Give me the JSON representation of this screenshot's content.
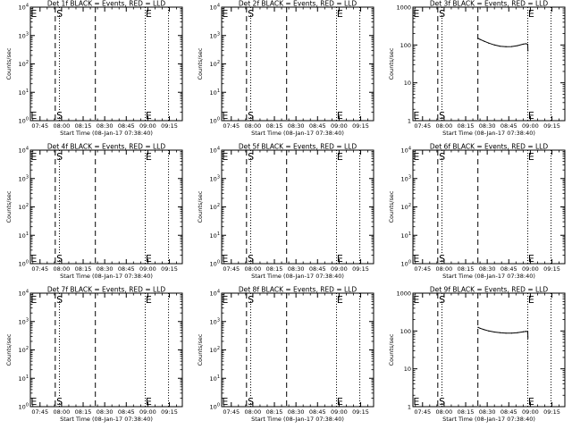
{
  "colors": {
    "events": "#000000",
    "lld": "#ff0000",
    "axes": "#000000",
    "background": "#ffffff"
  },
  "chart_data": [
    {
      "id": "det1f",
      "type": "line",
      "title": "Det 1f BLACK = Events, RED = LLD",
      "ylabel": "Counts/sec",
      "xlabel": "Start Time (08-Jan-17 07:38:40)",
      "yscale": "log",
      "ylim_exp": [
        0,
        4
      ],
      "ytick_style": "exp",
      "ytick_labels": [
        "10^4",
        "10^3",
        "10^2",
        "10^1",
        "10^0"
      ],
      "xtick_labels": [
        "07:45",
        "08:00",
        "08:15",
        "08:30",
        "08:45",
        "09:00",
        "09:15"
      ],
      "xlim_min": [
        -6.7,
        99
      ],
      "xtick_min": [
        0,
        15,
        30,
        45,
        60,
        75,
        90
      ],
      "dashed_lines_min": [
        10.6,
        38.5
      ],
      "dotted_lines_min": [
        13.5,
        73.2,
        89.4
      ],
      "markers": [
        {
          "label": "E",
          "x_min": -6.5
        },
        {
          "label": "S",
          "x_min": 11.4
        },
        {
          "label": "E",
          "x_min": 73.4
        }
      ],
      "series": []
    },
    {
      "id": "det2f",
      "type": "line",
      "title": "Det 2f BLACK = Events, RED = LLD",
      "ylabel": "Counts/sec",
      "xlabel": "Start Time (08-Jan-17 07:38:40)",
      "yscale": "log",
      "ylim_exp": [
        0,
        4
      ],
      "ytick_style": "exp",
      "ytick_labels": [
        "10^4",
        "10^3",
        "10^2",
        "10^1",
        "10^0"
      ],
      "xtick_labels": [
        "07:45",
        "08:00",
        "08:15",
        "08:30",
        "08:45",
        "09:00",
        "09:15"
      ],
      "xlim_min": [
        -6.7,
        99
      ],
      "xtick_min": [
        0,
        15,
        30,
        45,
        60,
        75,
        90
      ],
      "dashed_lines_min": [
        10.6,
        38.5
      ],
      "dotted_lines_min": [
        13.5,
        73.2,
        89.4
      ],
      "markers": [
        {
          "label": "E",
          "x_min": -6.5
        },
        {
          "label": "S",
          "x_min": 11.4
        },
        {
          "label": "E",
          "x_min": 73.4
        }
      ],
      "series": []
    },
    {
      "id": "det3f",
      "type": "line",
      "title": "Det 3f BLACK = Events, RED = LLD",
      "ylabel": "Counts/sec",
      "xlabel": "Start Time (08-Jan-17 07:38:40)",
      "yscale": "log",
      "ylim_exp": [
        0,
        3
      ],
      "ytick_style": "plain",
      "ytick_labels": [
        "1000",
        "100",
        "10",
        "1"
      ],
      "xtick_labels": [
        "07:45",
        "08:00",
        "08:15",
        "08:30",
        "08:45",
        "09:00",
        "09:15"
      ],
      "xlim_min": [
        -6.7,
        99
      ],
      "xtick_min": [
        0,
        15,
        30,
        45,
        60,
        75,
        90
      ],
      "dashed_lines_min": [
        10.6,
        38.5
      ],
      "dotted_lines_min": [
        13.5,
        73.2,
        89.4
      ],
      "markers": [
        {
          "label": "E",
          "x_min": -6.5
        },
        {
          "label": "S",
          "x_min": 11.4
        },
        {
          "label": "E",
          "x_min": 73.4
        }
      ],
      "series": [
        {
          "color": "events",
          "x": [
            38.6,
            40,
            43,
            46,
            50,
            54,
            58,
            62,
            66,
            70,
            72,
            73.2,
            73.3
          ],
          "y": [
            150,
            140,
            125,
            112,
            100,
            93,
            90,
            91,
            96,
            105,
            108,
            104,
            70
          ]
        }
      ]
    },
    {
      "id": "det4f",
      "type": "line",
      "title": "Det 4f BLACK = Events, RED = LLD",
      "ylabel": "Counts/sec",
      "xlabel": "Start Time (08-Jan-17 07:38:40)",
      "yscale": "log",
      "ylim_exp": [
        0,
        4
      ],
      "ytick_style": "exp",
      "ytick_labels": [
        "10^4",
        "10^3",
        "10^2",
        "10^1",
        "10^0"
      ],
      "xtick_labels": [
        "07:45",
        "08:00",
        "08:15",
        "08:30",
        "08:45",
        "09:00",
        "09:15"
      ],
      "xlim_min": [
        -6.7,
        99
      ],
      "xtick_min": [
        0,
        15,
        30,
        45,
        60,
        75,
        90
      ],
      "dashed_lines_min": [
        10.6,
        38.5
      ],
      "dotted_lines_min": [
        13.5,
        73.2,
        89.4
      ],
      "markers": [
        {
          "label": "E",
          "x_min": -6.5
        },
        {
          "label": "S",
          "x_min": 11.4
        },
        {
          "label": "E",
          "x_min": 73.4
        }
      ],
      "series": []
    },
    {
      "id": "det5f",
      "type": "line",
      "title": "Det 5f BLACK = Events, RED = LLD",
      "ylabel": "Counts/sec",
      "xlabel": "Start Time (08-Jan-17 07:38:40)",
      "yscale": "log",
      "ylim_exp": [
        0,
        4
      ],
      "ytick_style": "exp",
      "ytick_labels": [
        "10^4",
        "10^3",
        "10^2",
        "10^1",
        "10^0"
      ],
      "xtick_labels": [
        "07:45",
        "08:00",
        "08:15",
        "08:30",
        "08:45",
        "09:00",
        "09:15"
      ],
      "xlim_min": [
        -6.7,
        99
      ],
      "xtick_min": [
        0,
        15,
        30,
        45,
        60,
        75,
        90
      ],
      "dashed_lines_min": [
        10.6,
        38.5
      ],
      "dotted_lines_min": [
        13.5,
        73.2,
        89.4
      ],
      "markers": [
        {
          "label": "E",
          "x_min": -6.5
        },
        {
          "label": "S",
          "x_min": 11.4
        },
        {
          "label": "E",
          "x_min": 73.4
        }
      ],
      "series": []
    },
    {
      "id": "det6f",
      "type": "line",
      "title": "Det 6f BLACK = Events, RED = LLD",
      "ylabel": "Counts/sec",
      "xlabel": "Start Time (08-Jan-17 07:38:40)",
      "yscale": "log",
      "ylim_exp": [
        0,
        4
      ],
      "ytick_style": "exp",
      "ytick_labels": [
        "10^4",
        "10^3",
        "10^2",
        "10^1",
        "10^0"
      ],
      "xtick_labels": [
        "07:45",
        "08:00",
        "08:15",
        "08:30",
        "08:45",
        "09:00",
        "09:15"
      ],
      "xlim_min": [
        -6.7,
        99
      ],
      "xtick_min": [
        0,
        15,
        30,
        45,
        60,
        75,
        90
      ],
      "dashed_lines_min": [
        10.6,
        38.5
      ],
      "dotted_lines_min": [
        13.5,
        73.2,
        89.4
      ],
      "markers": [
        {
          "label": "E",
          "x_min": -6.5
        },
        {
          "label": "S",
          "x_min": 11.4
        },
        {
          "label": "E",
          "x_min": 73.4
        }
      ],
      "series": []
    },
    {
      "id": "det7f",
      "type": "line",
      "title": "Det 7f BLACK = Events, RED = LLD",
      "ylabel": "Counts/sec",
      "xlabel": "Start Time (08-Jan-17 07:38:40)",
      "yscale": "log",
      "ylim_exp": [
        0,
        4
      ],
      "ytick_style": "exp",
      "ytick_labels": [
        "10^4",
        "10^3",
        "10^2",
        "10^1",
        "10^0"
      ],
      "xtick_labels": [
        "07:45",
        "08:00",
        "08:15",
        "08:30",
        "08:45",
        "09:00",
        "09:15"
      ],
      "xlim_min": [
        -6.7,
        99
      ],
      "xtick_min": [
        0,
        15,
        30,
        45,
        60,
        75,
        90
      ],
      "dashed_lines_min": [
        10.6,
        38.5
      ],
      "dotted_lines_min": [
        13.5,
        73.2,
        89.4
      ],
      "markers": [
        {
          "label": "E",
          "x_min": -6.5
        },
        {
          "label": "S",
          "x_min": 11.4
        },
        {
          "label": "E",
          "x_min": 73.4
        }
      ],
      "series": []
    },
    {
      "id": "det8f",
      "type": "line",
      "title": "Det 8f BLACK = Events, RED = LLD",
      "ylabel": "Counts/sec",
      "xlabel": "Start Time (08-Jan-17 07:38:40)",
      "yscale": "log",
      "ylim_exp": [
        0,
        4
      ],
      "ytick_style": "exp",
      "ytick_labels": [
        "10^4",
        "10^3",
        "10^2",
        "10^1",
        "10^0"
      ],
      "xtick_labels": [
        "07:45",
        "08:00",
        "08:15",
        "08:30",
        "08:45",
        "09:00",
        "09:15"
      ],
      "xlim_min": [
        -6.7,
        99
      ],
      "xtick_min": [
        0,
        15,
        30,
        45,
        60,
        75,
        90
      ],
      "dashed_lines_min": [
        10.6,
        38.5
      ],
      "dotted_lines_min": [
        13.5,
        73.2,
        89.4
      ],
      "markers": [
        {
          "label": "E",
          "x_min": -6.5
        },
        {
          "label": "S",
          "x_min": 11.4
        },
        {
          "label": "E",
          "x_min": 73.4
        }
      ],
      "series": []
    },
    {
      "id": "det9f",
      "type": "line",
      "title": "Det 9f BLACK = Events, RED = LLD",
      "ylabel": "Counts/sec",
      "xlabel": "Start Time (08-Jan-17 07:38:40)",
      "yscale": "log",
      "ylim_exp": [
        0,
        3
      ],
      "ytick_style": "plain",
      "ytick_labels": [
        "1000",
        "100",
        "10",
        "1"
      ],
      "xtick_labels": [
        "07:45",
        "08:00",
        "08:15",
        "08:30",
        "08:45",
        "09:00",
        "09:15"
      ],
      "xlim_min": [
        -6.7,
        99
      ],
      "xtick_min": [
        0,
        15,
        30,
        45,
        60,
        75,
        90
      ],
      "dashed_lines_min": [
        10.6,
        38.5
      ],
      "dotted_lines_min": [
        13.5,
        73.2,
        89.4
      ],
      "markers": [
        {
          "label": "E",
          "x_min": -6.5
        },
        {
          "label": "S",
          "x_min": 11.4
        },
        {
          "label": "E",
          "x_min": 73.4
        }
      ],
      "series": [
        {
          "color": "events",
          "x": [
            38.6,
            40,
            43,
            46,
            50,
            54,
            58,
            62,
            66,
            70,
            72,
            73.2,
            73.3
          ],
          "y": [
            125,
            118,
            108,
            100,
            94,
            90,
            88,
            88,
            90,
            95,
            98,
            96,
            65
          ]
        }
      ]
    }
  ]
}
